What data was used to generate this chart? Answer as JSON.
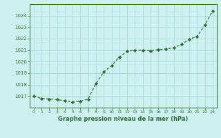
{
  "x": [
    0,
    1,
    2,
    3,
    4,
    5,
    6,
    7,
    8,
    9,
    10,
    11,
    12,
    13,
    14,
    15,
    16,
    17,
    18,
    19,
    20,
    21,
    22,
    23
  ],
  "y": [
    1017.0,
    1016.8,
    1016.75,
    1016.7,
    1016.6,
    1016.5,
    1016.55,
    1016.75,
    1018.1,
    1019.1,
    1019.65,
    1020.4,
    1020.9,
    1021.0,
    1021.0,
    1020.95,
    1021.05,
    1021.1,
    1021.2,
    1021.5,
    1021.95,
    1022.2,
    1023.2,
    1024.4
  ],
  "line_color": "#2d6a2d",
  "marker": "D",
  "marker_size": 2.2,
  "bg_color": "#cff0f0",
  "grid_color": "#a8d8d8",
  "xlabel": "Graphe pression niveau de la mer (hPa)",
  "xlabel_color": "#2d6a2d",
  "tick_color": "#2d6a2d",
  "ylim_min": 1016.0,
  "ylim_max": 1025.0,
  "yticks": [
    1017,
    1018,
    1019,
    1020,
    1021,
    1022,
    1023,
    1024
  ],
  "xticks": [
    0,
    1,
    2,
    3,
    4,
    5,
    6,
    7,
    8,
    9,
    10,
    11,
    12,
    13,
    14,
    15,
    16,
    17,
    18,
    19,
    20,
    21,
    22,
    23
  ]
}
